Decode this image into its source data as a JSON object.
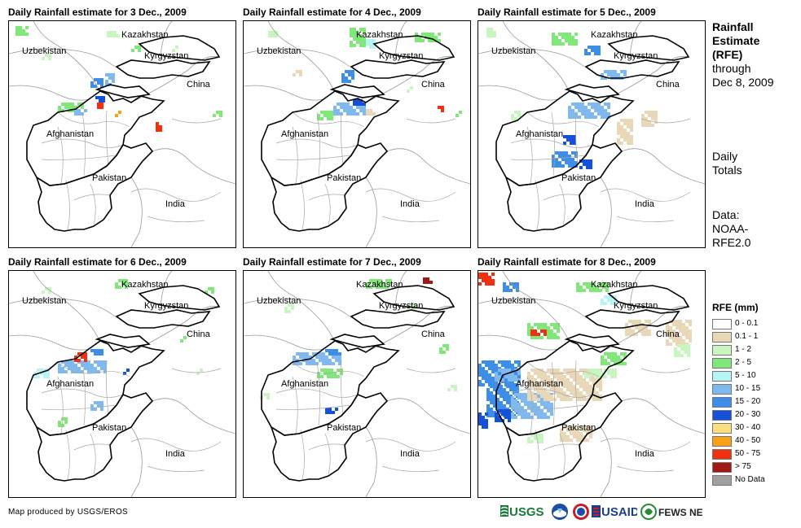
{
  "panels": [
    {
      "title": "Daily Rainfall estimate for 3 Dec., 2009"
    },
    {
      "title": "Daily Rainfall estimate for 4 Dec., 2009"
    },
    {
      "title": "Daily Rainfall estimate for 5 Dec., 2009"
    },
    {
      "title": "Daily Rainfall estimate for 6 Dec., 2009"
    },
    {
      "title": "Daily Rainfall estimate for 7 Dec., 2009"
    },
    {
      "title": "Daily Rainfall estimate for 8 Dec., 2009"
    }
  ],
  "map_labels": {
    "kazakhstan": "Kazakhstan",
    "uzbekistan": "Uzbekistan",
    "kyrgyzstan": "Kyrgyzstan",
    "china": "China",
    "afghanistan": "Afghanistan",
    "pakistan": "Pakistan",
    "india": "India"
  },
  "side": {
    "title_lines": [
      "Rainfall",
      "Estimate",
      "(RFE)"
    ],
    "through": "through",
    "date": "Dec 8, 2009",
    "daily": "Daily",
    "totals": "Totals",
    "data_label": "Data:",
    "data_source_1": "NOAA-",
    "data_source_2": "RFE2.0"
  },
  "legend": {
    "title": "RFE (mm)",
    "items": [
      {
        "label": "0 - 0.1",
        "color": "#ffffff"
      },
      {
        "label": "0.1 - 1",
        "color": "#e8d8b8"
      },
      {
        "label": "1 - 2",
        "color": "#c8f5c0"
      },
      {
        "label": "2 - 5",
        "color": "#80e878"
      },
      {
        "label": "5 - 10",
        "color": "#b8f4f4"
      },
      {
        "label": "10 - 15",
        "color": "#80b8f0"
      },
      {
        "label": "15 - 20",
        "color": "#3c8ee8"
      },
      {
        "label": "20 - 30",
        "color": "#1450d8"
      },
      {
        "label": "30 - 40",
        "color": "#fce080"
      },
      {
        "label": "40 - 50",
        "color": "#f8a018"
      },
      {
        "label": "50 - 75",
        "color": "#f03010"
      },
      {
        "label": "> 75",
        "color": "#a01818"
      },
      {
        "label": "No Data",
        "color": "#a0a0a0"
      }
    ]
  },
  "footer": {
    "credit": "Map produced by USGS/EROS",
    "logos": [
      "USGS",
      "NOAA",
      "NWS",
      "USAID",
      "FEWS NET"
    ]
  }
}
